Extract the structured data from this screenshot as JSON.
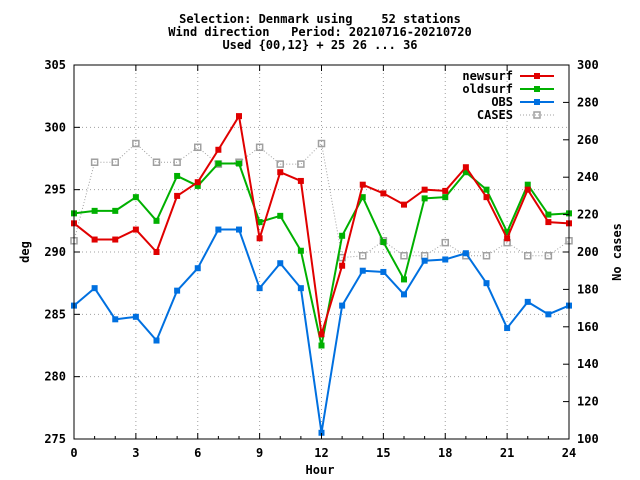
{
  "chart_data": {
    "type": "line",
    "title": [
      "Selection: Denmark using    52 stations",
      "Wind direction   Period: 20210716-20210720",
      "Used {00,12} + 25 26 ... 36"
    ],
    "xlabel": "Hour",
    "ylabel": "deg",
    "y2label": "No cases",
    "xlim": [
      0,
      24
    ],
    "ylim": [
      275,
      305
    ],
    "y2lim": [
      100,
      300
    ],
    "xticks": [
      "0",
      "3",
      "6",
      "9",
      "12",
      "15",
      "18",
      "21",
      "24"
    ],
    "yticks": [
      "275",
      "280",
      "285",
      "290",
      "295",
      "300",
      "305"
    ],
    "y2ticks": [
      "100",
      "120",
      "140",
      "160",
      "180",
      "200",
      "220",
      "240",
      "260",
      "280",
      "300"
    ],
    "grid": true,
    "legend_position": "top-right",
    "x": [
      0,
      1,
      2,
      3,
      4,
      5,
      6,
      7,
      8,
      9,
      10,
      11,
      12,
      13,
      14,
      15,
      16,
      17,
      18,
      19,
      20,
      21,
      22,
      23,
      24
    ],
    "series": [
      {
        "name": "newsurf",
        "color": "#e00000",
        "axis": "left",
        "marker": "filled-square",
        "values": [
          292.3,
          291.0,
          291.0,
          291.8,
          290.0,
          294.5,
          295.6,
          298.2,
          300.9,
          291.1,
          296.4,
          295.7,
          283.4,
          288.9,
          295.4,
          294.7,
          293.8,
          295.0,
          294.9,
          296.8,
          294.4,
          291.1,
          295.0,
          292.4,
          292.3
        ]
      },
      {
        "name": "oldsurf",
        "color": "#00b000",
        "axis": "left",
        "marker": "filled-square",
        "values": [
          293.1,
          293.3,
          293.3,
          294.4,
          292.5,
          296.1,
          295.3,
          297.1,
          297.1,
          292.4,
          292.9,
          290.1,
          282.5,
          291.3,
          294.4,
          290.8,
          287.8,
          294.3,
          294.4,
          296.4,
          295.0,
          291.6,
          295.4,
          293.0,
          293.1
        ]
      },
      {
        "name": "OBS",
        "color": "#0070e0",
        "axis": "left",
        "marker": "filled-square",
        "values": [
          285.7,
          287.1,
          284.6,
          284.8,
          282.9,
          286.9,
          288.7,
          291.8,
          291.8,
          287.1,
          289.1,
          287.1,
          275.5,
          285.7,
          288.5,
          288.4,
          286.6,
          289.3,
          289.4,
          289.9,
          287.5,
          283.9,
          286.0,
          285.0,
          285.7
        ]
      },
      {
        "name": "CASES",
        "color": "#a0a0a0",
        "axis": "right",
        "marker": "open-square",
        "values": [
          206,
          248,
          248,
          258,
          248,
          248,
          256,
          247,
          248,
          256,
          247,
          247,
          258,
          197,
          198,
          206,
          198,
          198,
          205,
          198,
          198,
          205,
          198,
          198,
          206
        ]
      }
    ]
  }
}
